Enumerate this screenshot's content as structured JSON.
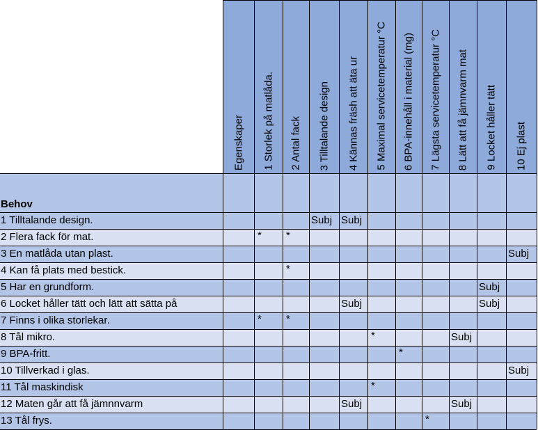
{
  "top_left_blank": "",
  "columns": [
    "Egenskaper",
    "1 Storlek på matlåda.",
    "2 Antal fack",
    "3 Tilltalande design",
    "4 Kännas fräsh att äta ur",
    "5 Maximal servicetemperatur °C",
    "6 BPA-innehåll i material (mg)",
    "7 Lägsta servicetemperatur °C",
    "8 Lätt att få jämnvarm mat",
    "9 Locket håller tätt",
    "10 Ej plast"
  ],
  "behov_label": "Behov",
  "rows": [
    {
      "label": "1 Tilltalande design.",
      "cells": [
        "",
        "",
        "",
        "Subj",
        "Subj",
        "",
        "",
        "",
        "",
        "",
        ""
      ]
    },
    {
      "label": "2 Flera fack för mat.",
      "cells": [
        "",
        "*",
        "*",
        "",
        "",
        "",
        "",
        "",
        "",
        "",
        ""
      ]
    },
    {
      "label": "3 En matlåda utan plast.",
      "cells": [
        "",
        "",
        "",
        "",
        "",
        "",
        "",
        "",
        "",
        "",
        "Subj"
      ]
    },
    {
      "label": "4 Kan få plats med bestick.",
      "cells": [
        "",
        "",
        "*",
        "",
        "",
        "",
        "",
        "",
        "",
        "",
        ""
      ]
    },
    {
      "label": "5 Har en grundform.",
      "cells": [
        "",
        "",
        "",
        "",
        "",
        "",
        "",
        "",
        "",
        "Subj",
        ""
      ]
    },
    {
      "label": "6 Locket håller tätt och lätt att sätta på",
      "cells": [
        "",
        "",
        "",
        "",
        "Subj",
        "",
        "",
        "",
        "",
        "Subj",
        ""
      ]
    },
    {
      "label": "7 Finns i olika storlekar.",
      "cells": [
        "",
        "*",
        "*",
        "",
        "",
        "",
        "",
        "",
        "",
        "",
        ""
      ]
    },
    {
      "label": "8 Tål mikro.",
      "cells": [
        "",
        "",
        "",
        "",
        "",
        "*",
        "",
        "",
        "Subj",
        "",
        ""
      ]
    },
    {
      "label": "9 BPA-fritt.",
      "cells": [
        "",
        "",
        "",
        "",
        "",
        "",
        "*",
        "",
        "",
        "",
        ""
      ]
    },
    {
      "label": "10 Tillverkad i glas.",
      "cells": [
        "",
        "",
        "",
        "",
        "",
        "",
        "",
        "",
        "",
        "",
        "Subj"
      ]
    },
    {
      "label": "11 Tål maskindisk",
      "cells": [
        "",
        "",
        "",
        "",
        "",
        "*",
        "",
        "",
        "",
        "",
        ""
      ]
    },
    {
      "label": "12 Maten går att få jämnnvarm",
      "cells": [
        "",
        "",
        "",
        "",
        "Subj",
        "",
        "",
        "",
        "Subj",
        "",
        ""
      ]
    },
    {
      "label": "13 Tål frys.",
      "cells": [
        "",
        "",
        "",
        "",
        "",
        "",
        "",
        "*",
        "",
        "",
        ""
      ]
    }
  ],
  "colors": {
    "header": "#8eaadb",
    "row_dark": "#b4c6e7",
    "row_light": "#d9e1f2",
    "grid": "#000000"
  }
}
